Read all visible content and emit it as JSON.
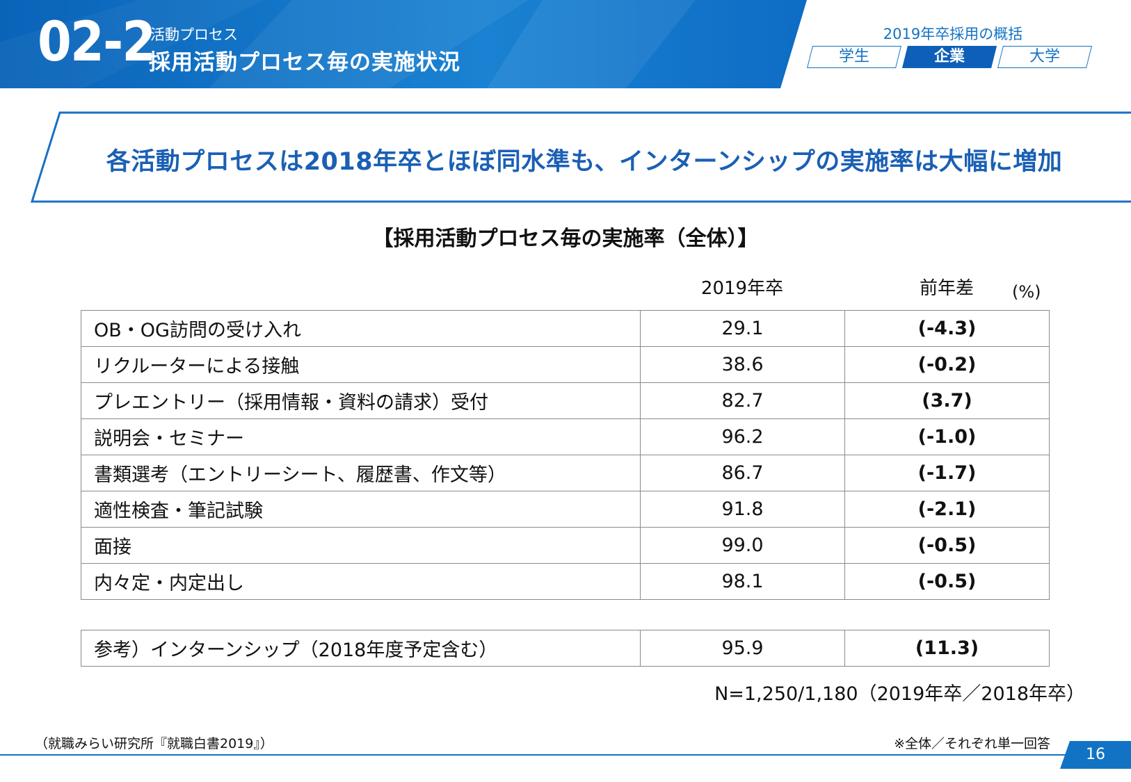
{
  "header": {
    "section_number": "02-2",
    "section_subtitle": "活動プロセス",
    "section_title": "採用活動プロセス毎の実施状況",
    "overview_title": "2019年卒採用の概括",
    "tabs": [
      {
        "label": "学生",
        "active": false
      },
      {
        "label": "企業",
        "active": true
      },
      {
        "label": "大学",
        "active": false
      }
    ],
    "brand_color": "#1273c4"
  },
  "banner": {
    "headline": "各活動プロセスは2018年卒とほぼ同水準も、インターンシップの実施率は大幅に増加"
  },
  "table": {
    "title": "【採用活動プロセス毎の実施率（全体）】",
    "col_2019": "2019年卒",
    "col_diff": "前年差",
    "unit": "(%)",
    "rows": [
      {
        "label": "OB・OG訪問の受け入れ",
        "value": "29.1",
        "diff": "(-4.3)",
        "diff_sign": "neg"
      },
      {
        "label": "リクルーターによる接触",
        "value": "38.6",
        "diff": "(-0.2)",
        "diff_sign": "neg"
      },
      {
        "label": "プレエントリー（採用情報・資料の請求）受付",
        "value": "82.7",
        "diff": "(3.7)",
        "diff_sign": "pos"
      },
      {
        "label": "説明会・セミナー",
        "value": "96.2",
        "diff": "(-1.0)",
        "diff_sign": "neg"
      },
      {
        "label": "書類選考（エントリーシート、履歴書、作文等）",
        "value": "86.7",
        "diff": "(-1.7)",
        "diff_sign": "neg"
      },
      {
        "label": "適性検査・筆記試験",
        "value": "91.8",
        "diff": "(-2.1)",
        "diff_sign": "neg"
      },
      {
        "label": "面接",
        "value": "99.0",
        "diff": "(-0.5)",
        "diff_sign": "neg"
      },
      {
        "label": "内々定・内定出し",
        "value": "98.1",
        "diff": "(-0.5)",
        "diff_sign": "neg"
      }
    ],
    "reference_row": {
      "label": "参考）インターンシップ（2018年度予定含む）",
      "value": "95.9",
      "diff": "(11.3)",
      "diff_sign": "pos"
    },
    "colors": {
      "negative": "#b4141b",
      "positive": "#1a7fc8"
    }
  },
  "footer": {
    "sample_size": "N=1,250/1,180（2019年卒／2018年卒）",
    "source": "（就職みらい研究所『就職白書2019』）",
    "note": "※全体／それぞれ単一回答",
    "page_number": "16"
  }
}
